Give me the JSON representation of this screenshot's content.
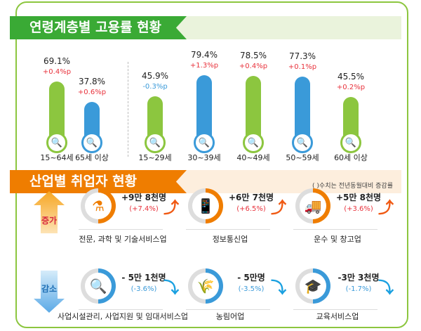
{
  "section1": {
    "title": "연령계층별 고용률 현황"
  },
  "section2": {
    "title": "산업별 취업자 현황",
    "note": "( )수치는 전년동월대비 증감률",
    "increase_label": "증가",
    "decrease_label": "감소"
  },
  "colors": {
    "green": "#8cc63f",
    "blue": "#3a9ad9",
    "red": "#e8323c",
    "orange": "#ef7d00"
  },
  "chart_data": {
    "type": "bar",
    "unit": "%",
    "categories": [
      "15~64세",
      "65세 이상",
      "15~29세",
      "30~39세",
      "40~49세",
      "50~59세",
      "60세 이상"
    ],
    "values": [
      69.1,
      37.8,
      45.9,
      79.4,
      78.5,
      77.3,
      45.5
    ],
    "value_labels": [
      "69.1%",
      "37.8%",
      "45.9%",
      "79.4%",
      "78.5%",
      "77.3%",
      "45.5%"
    ],
    "changes": [
      "+0.4%p",
      "+0.6%p",
      "-0.3%p",
      "+1.3%p",
      "+0.4%p",
      "+0.1%p",
      "+0.2%p"
    ],
    "bar_colors": [
      "green",
      "blue",
      "green",
      "blue",
      "green",
      "blue",
      "green"
    ]
  },
  "industries": {
    "increase": [
      {
        "name": "전문, 과학 및 기술서비스업",
        "amount": "+9만 8천명",
        "pct": "(+7.4%)",
        "icon": "flask-icon",
        "glyph": "⚗"
      },
      {
        "name": "정보통신업",
        "amount": "+6만 7천명",
        "pct": "(+6.5%)",
        "icon": "phone-icon",
        "glyph": "📱"
      },
      {
        "name": "운수 및 창고업",
        "amount": "+5만 8천명",
        "pct": "(+3.6%)",
        "icon": "truck-icon",
        "glyph": "🚚"
      }
    ],
    "decrease": [
      {
        "name": "사업시설관리, 사업지원 및 임대서비스업",
        "amount": "- 5만 1천명",
        "pct": "(-3.6%)",
        "icon": "tools-search-icon",
        "glyph": "🔍"
      },
      {
        "name": "농림어업",
        "amount": "- 5만명",
        "pct": "(-3.5%)",
        "icon": "wheat-icon",
        "glyph": "🌾"
      },
      {
        "name": "교육서비스업",
        "amount": "-3만 3천명",
        "pct": "(-1.7%)",
        "icon": "graduation-cap-icon",
        "glyph": "🎓"
      }
    ]
  }
}
